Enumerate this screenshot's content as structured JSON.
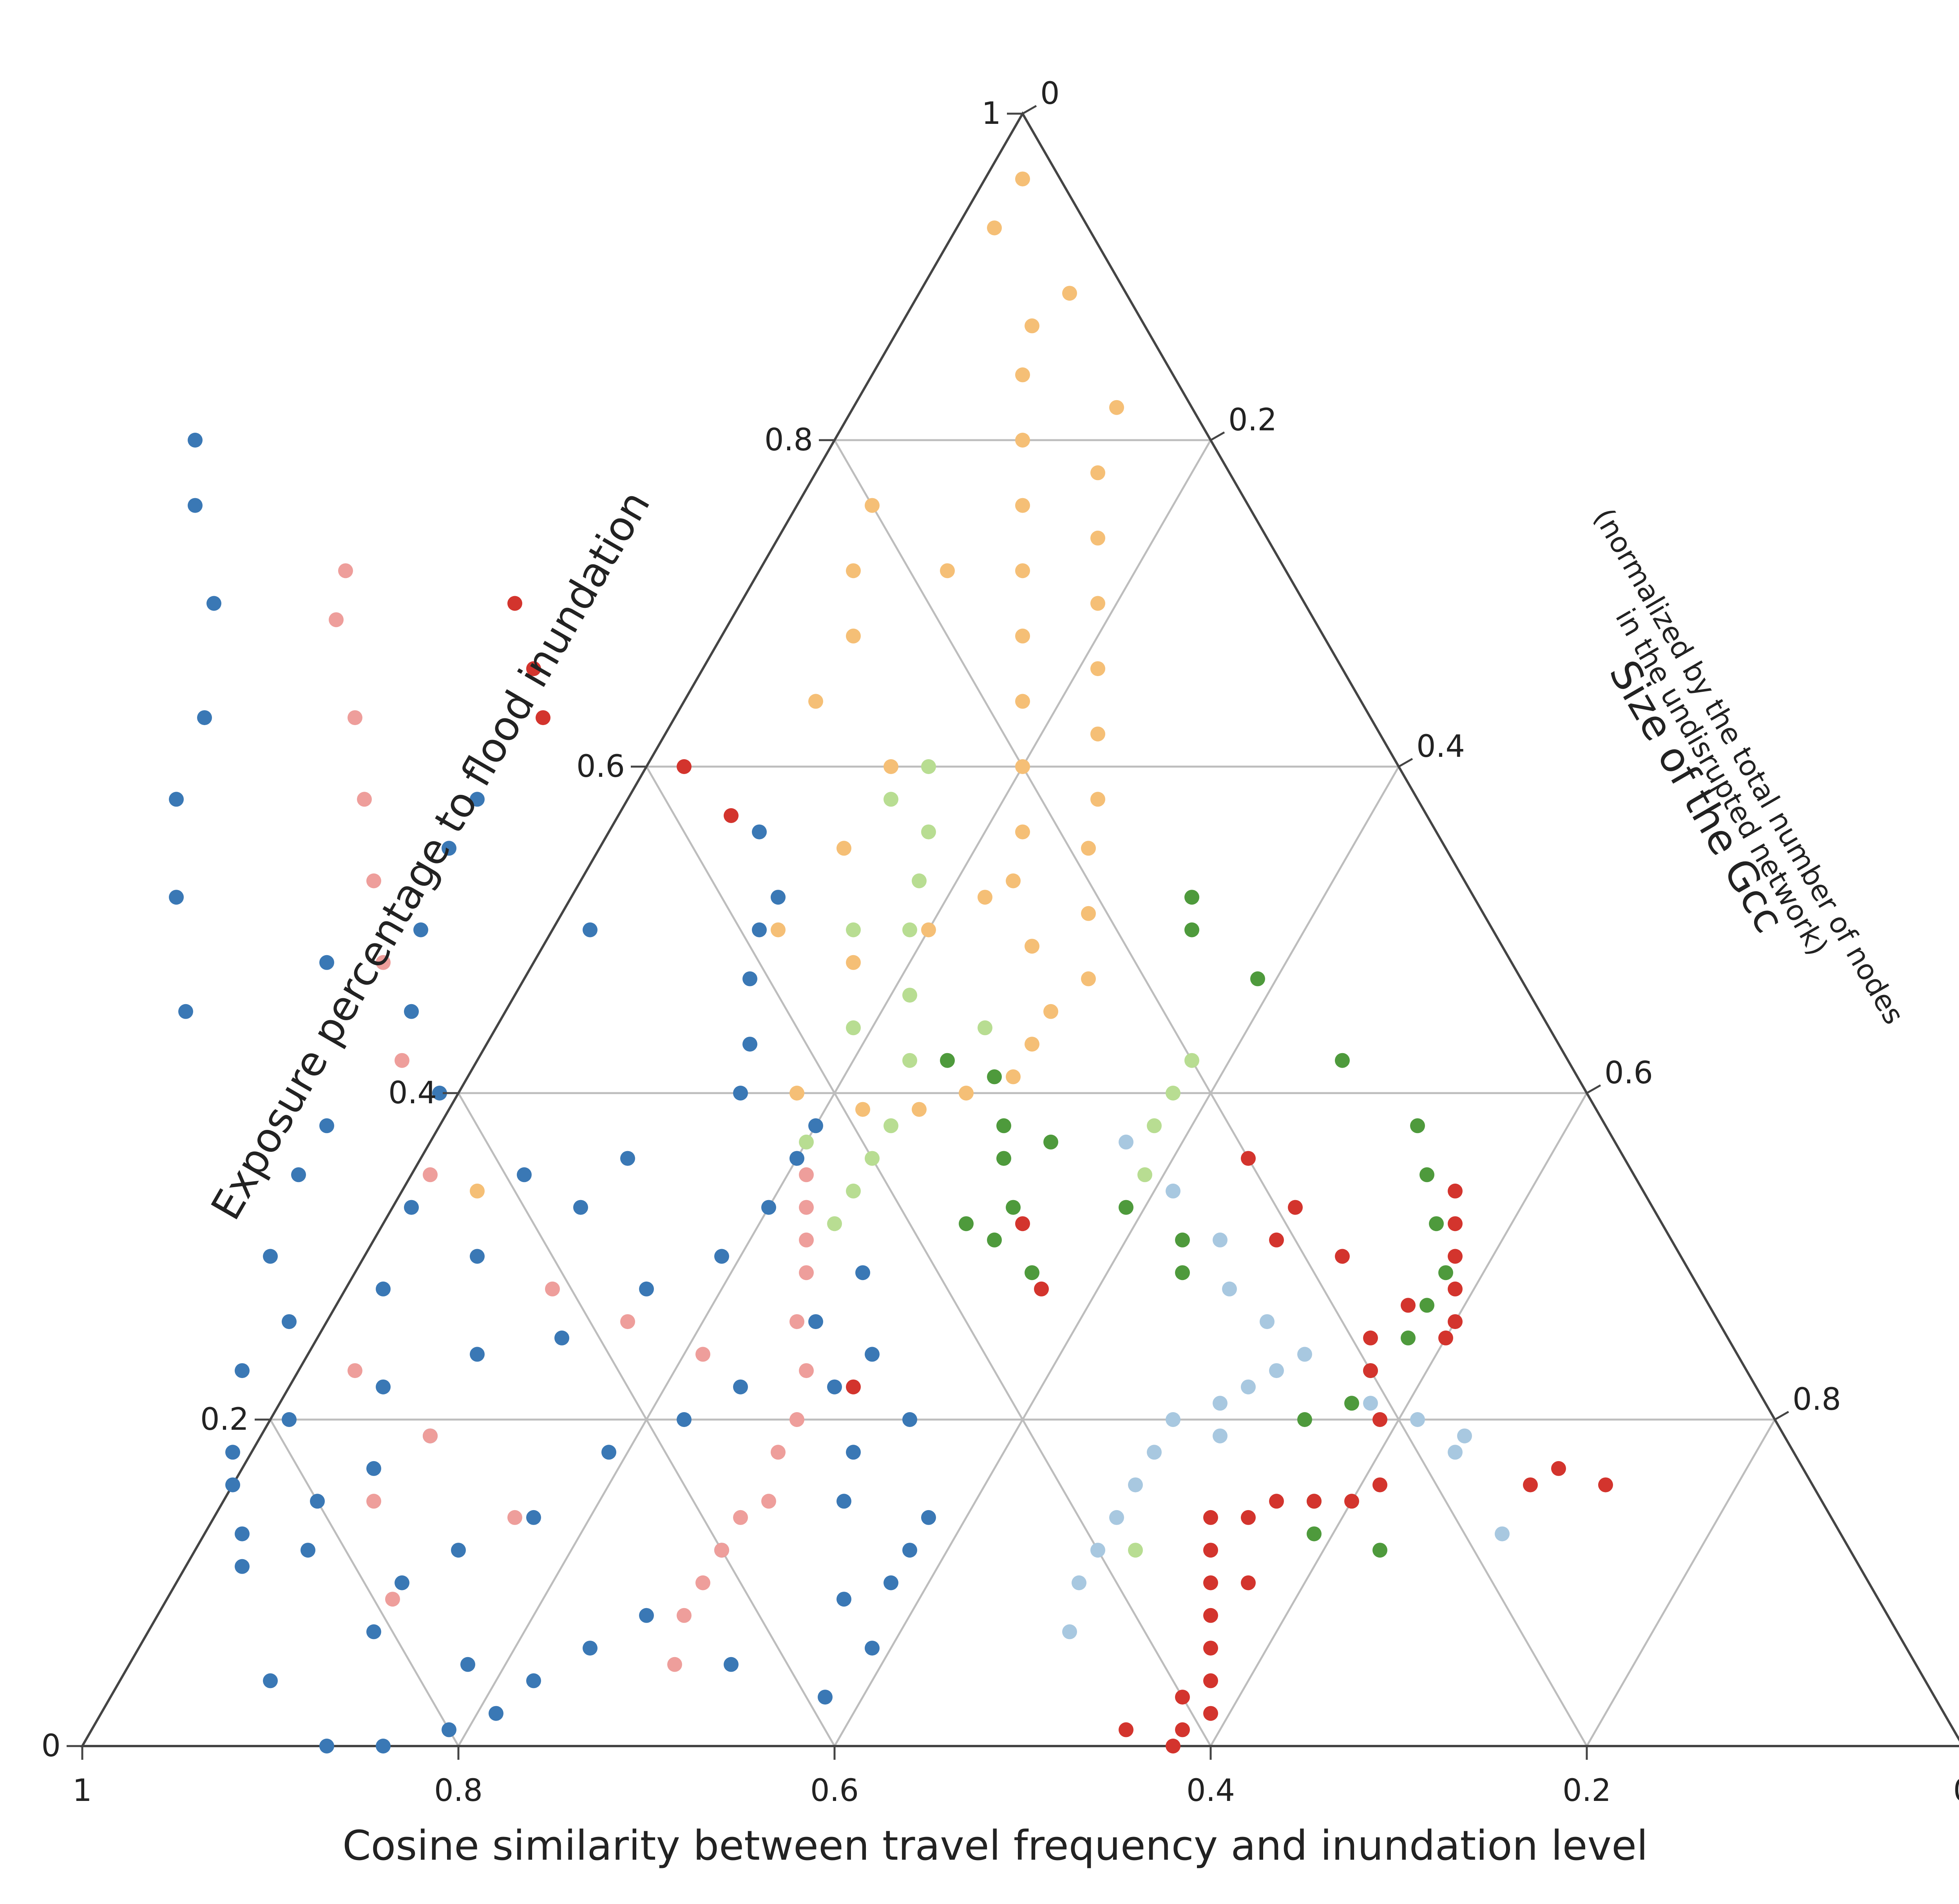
{
  "chart_data": {
    "type": "scatter",
    "subtype": "ternary",
    "title": "",
    "axes": {
      "bottom": {
        "label": "Cosine similarity between travel frequency and inundation level",
        "ticks": [
          "1",
          "0.8",
          "0.6",
          "0.4",
          "0.2",
          "0"
        ]
      },
      "left": {
        "label": "Exposure percentage to flood inundation",
        "ticks": [
          "0",
          "0.2",
          "0.4",
          "0.6",
          "0.8",
          "1"
        ]
      },
      "right": {
        "label": "Size of the Gcc",
        "sublabel_1": "(normalized by the total number of nodes",
        "sublabel_2": "in the undisrupted network)",
        "ticks": [
          "0",
          "0.2",
          "0.4",
          "0.6",
          "0.8",
          "1"
        ]
      }
    },
    "grid": true,
    "legend": "none",
    "series": [
      {
        "color": "#3a78b5",
        "points": [
          [
            0.85,
            0.13
          ],
          [
            0.86,
            0.11
          ],
          [
            0.84,
            0.16
          ],
          [
            0.82,
            0.12
          ],
          [
            0.8,
            0.15
          ],
          [
            0.78,
            0.1
          ],
          [
            0.83,
            0.18
          ],
          [
            0.79,
            0.2
          ],
          [
            0.76,
            0.17
          ],
          [
            0.81,
            0.07
          ],
          [
            0.77,
            0.05
          ],
          [
            0.74,
            0.12
          ],
          [
            0.8,
            0.23
          ],
          [
            0.76,
            0.26
          ],
          [
            0.73,
            0.22
          ],
          [
            0.75,
            0.3
          ],
          [
            0.71,
            0.35
          ],
          [
            0.7,
            0.28
          ],
          [
            0.72,
            0.19
          ],
          [
            0.69,
            0.14
          ],
          [
            0.67,
            0.24
          ],
          [
            0.66,
            0.33
          ],
          [
            0.68,
            0.38
          ],
          [
            0.64,
            0.3
          ],
          [
            0.62,
            0.25
          ],
          [
            0.63,
            0.18
          ],
          [
            0.6,
            0.12
          ],
          [
            0.58,
            0.2
          ],
          [
            0.56,
            0.28
          ],
          [
            0.59,
            0.35
          ],
          [
            0.61,
            0.4
          ],
          [
            0.57,
            0.33
          ],
          [
            0.54,
            0.22
          ],
          [
            0.52,
            0.15
          ],
          [
            0.55,
            0.09
          ],
          [
            0.5,
            0.18
          ],
          [
            0.48,
            0.26
          ],
          [
            0.51,
            0.3
          ],
          [
            0.53,
            0.36
          ],
          [
            0.47,
            0.33
          ],
          [
            0.49,
            0.22
          ],
          [
            0.46,
            0.2
          ],
          [
            0.72,
            0.45
          ],
          [
            0.69,
            0.52
          ],
          [
            0.66,
            0.58
          ],
          [
            0.62,
            0.63
          ],
          [
            0.58,
            0.7
          ],
          [
            0.56,
            0.76
          ],
          [
            0.54,
            0.8
          ],
          [
            0.63,
            0.48
          ],
          [
            0.6,
            0.45
          ],
          [
            0.57,
            0.5
          ],
          [
            0.53,
            0.55
          ],
          [
            0.5,
            0.58
          ],
          [
            0.48,
            0.5
          ],
          [
            0.45,
            0.4
          ],
          [
            0.43,
            0.43
          ],
          [
            0.41,
            0.47
          ],
          [
            0.39,
            0.5
          ],
          [
            0.37,
            0.52
          ],
          [
            0.36,
            0.56
          ],
          [
            0.44,
            0.36
          ],
          [
            0.42,
            0.38
          ],
          [
            0.88,
            0.04
          ],
          [
            0.87,
            0.0
          ],
          [
            0.84,
            0.0
          ],
          [
            0.8,
            0.01
          ],
          [
            0.77,
            0.02
          ],
          [
            0.74,
            0.04
          ],
          [
            0.7,
            0.06
          ],
          [
            0.66,
            0.08
          ],
          [
            0.63,
            0.05
          ],
          [
            0.59,
            0.03
          ],
          [
            0.55,
            0.06
          ],
          [
            0.52,
            0.1
          ],
          [
            0.5,
            0.12
          ],
          [
            0.48,
            0.14
          ],
          [
            0.46,
            0.24
          ],
          [
            0.44,
            0.29
          ]
        ]
      },
      {
        "color": "#ee9e9b",
        "points": [
          [
            0.62,
            0.1
          ],
          [
            0.6,
            0.12
          ],
          [
            0.58,
            0.14
          ],
          [
            0.56,
            0.15
          ],
          [
            0.54,
            0.18
          ],
          [
            0.52,
            0.2
          ],
          [
            0.5,
            0.23
          ],
          [
            0.49,
            0.26
          ],
          [
            0.47,
            0.29
          ],
          [
            0.46,
            0.31
          ],
          [
            0.55,
            0.24
          ],
          [
            0.58,
            0.26
          ],
          [
            0.61,
            0.28
          ],
          [
            0.64,
            0.35
          ],
          [
            0.62,
            0.42
          ],
          [
            0.6,
            0.48
          ],
          [
            0.58,
            0.53
          ],
          [
            0.56,
            0.58
          ],
          [
            0.54,
            0.63
          ],
          [
            0.52,
            0.69
          ],
          [
            0.5,
            0.72
          ],
          [
            0.7,
            0.14
          ],
          [
            0.72,
            0.19
          ],
          [
            0.74,
            0.23
          ],
          [
            0.77,
            0.15
          ],
          [
            0.79,
            0.09
          ],
          [
            0.66,
            0.05
          ],
          [
            0.64,
            0.08
          ],
          [
            0.45,
            0.33
          ],
          [
            0.44,
            0.35
          ]
        ]
      },
      {
        "color": "#f5bf76",
        "points": [
          [
            0.02,
            0.96
          ],
          [
            0.05,
            0.93
          ],
          [
            0.03,
            0.89
          ],
          [
            0.06,
            0.87
          ],
          [
            0.08,
            0.84
          ],
          [
            0.04,
            0.82
          ],
          [
            0.1,
            0.8
          ],
          [
            0.07,
            0.78
          ],
          [
            0.12,
            0.76
          ],
          [
            0.09,
            0.74
          ],
          [
            0.14,
            0.72
          ],
          [
            0.11,
            0.7
          ],
          [
            0.16,
            0.68
          ],
          [
            0.13,
            0.66
          ],
          [
            0.18,
            0.64
          ],
          [
            0.15,
            0.62
          ],
          [
            0.2,
            0.6
          ],
          [
            0.17,
            0.58
          ],
          [
            0.22,
            0.56
          ],
          [
            0.19,
            0.55
          ],
          [
            0.24,
            0.53
          ],
          [
            0.21,
            0.51
          ],
          [
            0.25,
            0.49
          ],
          [
            0.23,
            0.47
          ],
          [
            0.26,
            0.45
          ],
          [
            0.28,
            0.43
          ],
          [
            0.3,
            0.41
          ],
          [
            0.33,
            0.4
          ],
          [
            0.36,
            0.39
          ],
          [
            0.39,
            0.39
          ],
          [
            0.42,
            0.4
          ],
          [
            0.3,
            0.5
          ],
          [
            0.32,
            0.55
          ],
          [
            0.27,
            0.6
          ],
          [
            0.29,
            0.64
          ],
          [
            0.25,
            0.68
          ],
          [
            0.23,
            0.72
          ],
          [
            0.2,
            0.76
          ],
          [
            0.18,
            0.72
          ],
          [
            0.26,
            0.52
          ],
          [
            0.35,
            0.48
          ],
          [
            0.38,
            0.5
          ],
          [
            0.62,
            0.34
          ]
        ]
      },
      {
        "color": "#b8dd92",
        "points": [
          [
            0.33,
            0.46
          ],
          [
            0.31,
            0.5
          ],
          [
            0.29,
            0.53
          ],
          [
            0.27,
            0.56
          ],
          [
            0.3,
            0.44
          ],
          [
            0.35,
            0.42
          ],
          [
            0.38,
            0.38
          ],
          [
            0.4,
            0.36
          ],
          [
            0.42,
            0.34
          ],
          [
            0.44,
            0.32
          ],
          [
            0.43,
            0.37
          ],
          [
            0.37,
            0.44
          ],
          [
            0.34,
            0.5
          ],
          [
            0.28,
            0.58
          ],
          [
            0.25,
            0.6
          ],
          [
            0.24,
            0.38
          ],
          [
            0.26,
            0.35
          ],
          [
            0.22,
            0.4
          ],
          [
            0.2,
            0.42
          ],
          [
            0.38,
            0.12
          ]
        ]
      },
      {
        "color": "#4e9a3c",
        "points": [
          [
            0.33,
            0.36
          ],
          [
            0.34,
            0.33
          ],
          [
            0.36,
            0.31
          ],
          [
            0.35,
            0.29
          ],
          [
            0.37,
            0.32
          ],
          [
            0.32,
            0.38
          ],
          [
            0.31,
            0.41
          ],
          [
            0.33,
            0.42
          ],
          [
            0.3,
            0.37
          ],
          [
            0.28,
            0.33
          ],
          [
            0.26,
            0.31
          ],
          [
            0.27,
            0.29
          ],
          [
            0.15,
            0.52
          ],
          [
            0.16,
            0.5
          ],
          [
            0.14,
            0.47
          ],
          [
            0.12,
            0.42
          ],
          [
            0.1,
            0.38
          ],
          [
            0.11,
            0.35
          ],
          [
            0.12,
            0.32
          ],
          [
            0.13,
            0.29
          ],
          [
            0.15,
            0.27
          ],
          [
            0.17,
            0.25
          ],
          [
            0.2,
            0.23
          ],
          [
            0.22,
            0.21
          ],
          [
            0.25,
            0.2
          ],
          [
            0.27,
            0.15
          ],
          [
            0.25,
            0.12
          ],
          [
            0.28,
            0.13
          ]
        ]
      },
      {
        "color": "#a8c8e0",
        "points": [
          [
            0.26,
            0.37
          ],
          [
            0.25,
            0.34
          ],
          [
            0.24,
            0.31
          ],
          [
            0.25,
            0.28
          ],
          [
            0.24,
            0.26
          ],
          [
            0.23,
            0.24
          ],
          [
            0.25,
            0.23
          ],
          [
            0.27,
            0.22
          ],
          [
            0.29,
            0.21
          ],
          [
            0.3,
            0.19
          ],
          [
            0.32,
            0.2
          ],
          [
            0.21,
            0.21
          ],
          [
            0.19,
            0.2
          ],
          [
            0.18,
            0.18
          ],
          [
            0.17,
            0.19
          ],
          [
            0.34,
            0.18
          ],
          [
            0.36,
            0.16
          ],
          [
            0.38,
            0.14
          ],
          [
            0.4,
            0.12
          ],
          [
            0.42,
            0.1
          ],
          [
            0.44,
            0.07
          ],
          [
            0.18,
            0.13
          ]
        ]
      },
      {
        "color": "#d3342d",
        "points": [
          [
            0.42,
            0.0
          ],
          [
            0.41,
            0.01
          ],
          [
            0.39,
            0.02
          ],
          [
            0.38,
            0.04
          ],
          [
            0.37,
            0.06
          ],
          [
            0.36,
            0.08
          ],
          [
            0.35,
            0.1
          ],
          [
            0.34,
            0.12
          ],
          [
            0.33,
            0.14
          ],
          [
            0.31,
            0.14
          ],
          [
            0.29,
            0.15
          ],
          [
            0.27,
            0.15
          ],
          [
            0.25,
            0.15
          ],
          [
            0.23,
            0.16
          ],
          [
            0.44,
            0.01
          ],
          [
            0.4,
            0.03
          ],
          [
            0.33,
            0.1
          ],
          [
            0.15,
            0.25
          ],
          [
            0.14,
            0.26
          ],
          [
            0.13,
            0.28
          ],
          [
            0.12,
            0.3
          ],
          [
            0.11,
            0.32
          ],
          [
            0.1,
            0.34
          ],
          [
            0.16,
            0.27
          ],
          [
            0.18,
            0.3
          ],
          [
            0.19,
            0.33
          ],
          [
            0.2,
            0.36
          ],
          [
            0.21,
            0.31
          ],
          [
            0.19,
            0.25
          ],
          [
            0.15,
            0.16
          ],
          [
            0.13,
            0.17
          ],
          [
            0.11,
            0.16
          ],
          [
            0.2,
            0.23
          ],
          [
            0.21,
            0.2
          ],
          [
            0.35,
            0.28
          ],
          [
            0.34,
            0.32
          ],
          [
            0.42,
            0.7
          ],
          [
            0.44,
            0.63
          ],
          [
            0.43,
            0.66
          ],
          [
            0.38,
            0.6
          ],
          [
            0.37,
            0.57
          ],
          [
            0.48,
            0.22
          ]
        ]
      }
    ]
  }
}
